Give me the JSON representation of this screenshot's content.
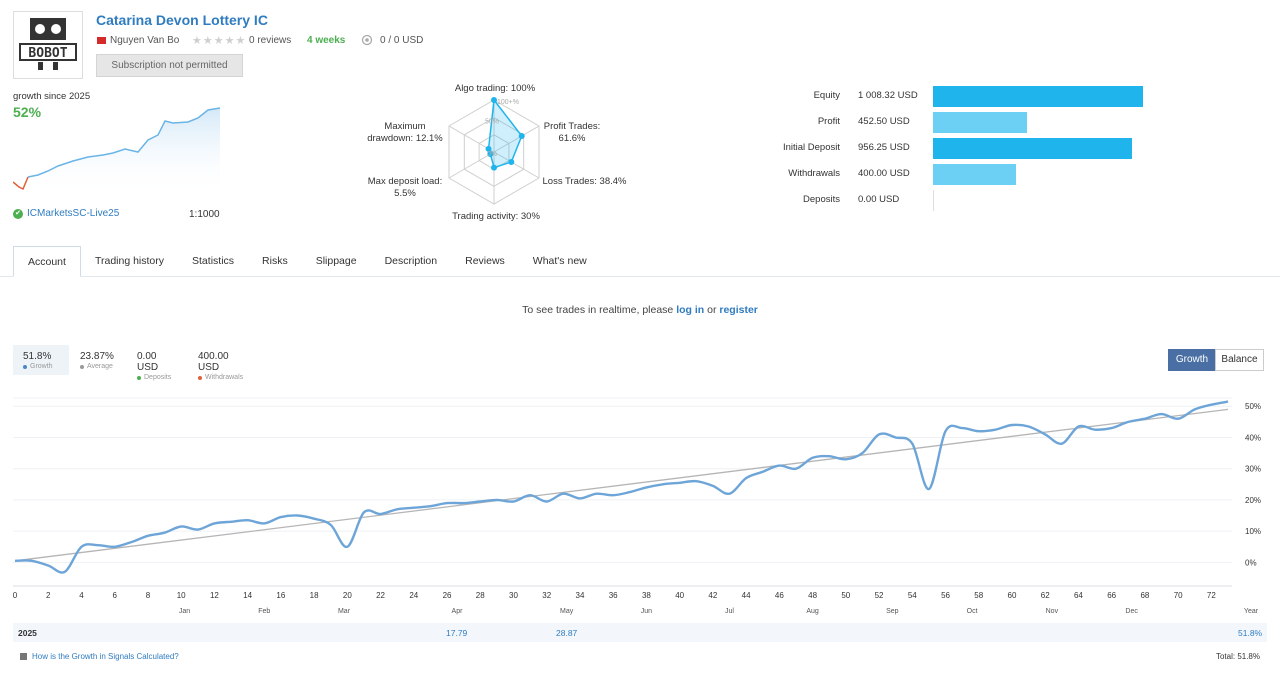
{
  "header": {
    "title": "Catarina Devon Lottery IC",
    "author": "Nguyen Van Bo",
    "reviews": "0 reviews",
    "weeks": "4 weeks",
    "price": "0 / 0 USD",
    "subscription_btn": "Subscription not permitted",
    "logo_text": "BOBOT"
  },
  "summary": {
    "growth_label": "growth since 2025",
    "growth_value": "52%",
    "broker": "ICMarketsSC-Live25",
    "leverage": "1:1000"
  },
  "radar": {
    "algo": "Algo trading: 100%",
    "algo_inner": "100+%",
    "profit_trades": "Profit Trades:",
    "profit_trades_val": "61.6%",
    "loss_trades": "Loss Trades: 38.4%",
    "trading_activity": "Trading activity: 30%",
    "max_deposit_load": "Max deposit load:",
    "max_deposit_load_val": "5.5%",
    "max_drawdown": "Maximum",
    "max_drawdown_2": "drawdown: 12.1%",
    "ring_50": "50%",
    "ring_0": "0%",
    "values": {
      "algo": 1.0,
      "profit": 0.616,
      "loss": 0.384,
      "activity": 0.3,
      "deposit_load": 0.055,
      "drawdown": 0.121
    }
  },
  "balance_bars": [
    {
      "label": "Equity",
      "value": "1 008.32 USD",
      "amount": 1008.32,
      "color": "#1fb5ec"
    },
    {
      "label": "Profit",
      "value": "452.50 USD",
      "amount": 452.5,
      "color": "#6ccff4"
    },
    {
      "label": "Initial Deposit",
      "value": "956.25 USD",
      "amount": 956.25,
      "color": "#1fb5ec"
    },
    {
      "label": "Withdrawals",
      "value": "400.00 USD",
      "amount": 400.0,
      "color": "#6ccff4"
    },
    {
      "label": "Deposits",
      "value": "0.00 USD",
      "amount": 0,
      "color": "#1fb5ec"
    }
  ],
  "tabs": [
    "Account",
    "Trading history",
    "Statistics",
    "Risks",
    "Slippage",
    "Description",
    "Reviews",
    "What's new"
  ],
  "realtime": {
    "prefix": "To see trades in realtime, please ",
    "login": "log in",
    "or": " or ",
    "register": "register"
  },
  "stats": [
    {
      "value": "51.8%",
      "label": "Growth",
      "color": "#4a86c5"
    },
    {
      "value": "23.87%",
      "label": "Average",
      "color": "#999999"
    },
    {
      "value": "0.00 USD",
      "label": "Deposits",
      "color": "#4caf50"
    },
    {
      "value": "400.00 USD",
      "label": "Withdrawals",
      "color": "#e0603a"
    }
  ],
  "toggle": {
    "growth": "Growth",
    "balance": "Balance"
  },
  "chart_data": {
    "type": "line",
    "x_ticks": [
      0,
      2,
      4,
      6,
      8,
      10,
      12,
      14,
      16,
      18,
      20,
      22,
      24,
      26,
      28,
      30,
      32,
      34,
      36,
      38,
      40,
      42,
      44,
      46,
      48,
      50,
      52,
      54,
      56,
      58,
      60,
      62,
      64,
      66,
      68,
      70,
      72
    ],
    "months": [
      "Jan",
      "Feb",
      "Mar",
      "Apr",
      "May",
      "Jun",
      "Jul",
      "Aug",
      "Sep",
      "Oct",
      "Nov",
      "Dec"
    ],
    "y_ticks": [
      "0%",
      "10%",
      "20%",
      "30%",
      "40%",
      "50%"
    ],
    "ylim": [
      -5,
      52
    ],
    "xlim": [
      0,
      73
    ],
    "x_axis_word": "Year",
    "series": [
      {
        "x": [
          0,
          1,
          2,
          3,
          4,
          5,
          6,
          7,
          8,
          9,
          10,
          11,
          12,
          13,
          14,
          15,
          16,
          17,
          18,
          19,
          20,
          21,
          22,
          23,
          24,
          25,
          26,
          27,
          28,
          29,
          30,
          31,
          32,
          33,
          34,
          35,
          36,
          37,
          38,
          39,
          40,
          41,
          42,
          43,
          44,
          45,
          46,
          47,
          48,
          49,
          50,
          51,
          52,
          53,
          54,
          55,
          56,
          57,
          58,
          59,
          60,
          61,
          62,
          63,
          64,
          65,
          66,
          67,
          68,
          69,
          70,
          71,
          72,
          73
        ],
        "values": [
          0.5,
          0.5,
          -1,
          -3,
          5,
          5.5,
          5,
          6.5,
          8.5,
          9.5,
          11.5,
          10.5,
          12.5,
          13,
          13.5,
          12.5,
          14.5,
          15,
          14,
          12,
          5,
          16,
          15.5,
          17,
          17.5,
          18,
          19,
          19,
          19.5,
          20,
          19.5,
          21.5,
          19.5,
          22,
          20.5,
          22,
          21.5,
          22.5,
          24,
          25,
          25.5,
          26,
          24.5,
          22,
          27,
          29,
          31,
          30,
          33.5,
          34,
          33,
          35,
          41,
          40,
          38,
          23.5,
          42,
          43,
          42,
          42.5,
          44,
          43.5,
          41,
          38,
          43.5,
          42.5,
          43,
          45,
          46,
          47.5,
          46,
          49,
          50.5,
          51.5
        ]
      },
      {
        "x": [
          0,
          73
        ],
        "values": [
          0.5,
          49
        ]
      }
    ]
  },
  "year_row": {
    "year": "2025",
    "apr": "17.79",
    "may": "28.87",
    "total": "51.8%"
  },
  "footer": {
    "link": "How is the Growth in Signals Calculated?",
    "total": "Total: 51.8%"
  }
}
